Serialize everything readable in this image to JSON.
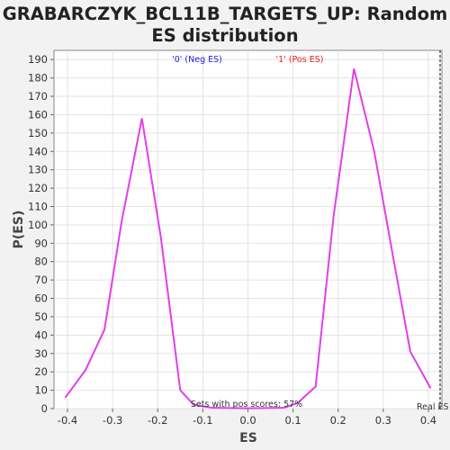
{
  "chart_data": {
    "type": "line",
    "title_lines": [
      "GRABARCZYK_BCL11B_TARGETS_UP: Random",
      "ES distribution"
    ],
    "xlabel": "ES",
    "ylabel": "P(ES)",
    "xlim": [
      -0.43,
      0.43
    ],
    "ylim": [
      0,
      195
    ],
    "x_ticks": [
      -0.4,
      -0.3,
      -0.2,
      -0.1,
      0.0,
      0.1,
      0.2,
      0.3,
      0.4
    ],
    "x_tick_labels": [
      "-0.4",
      "-0.3",
      "-0.2",
      "-0.1",
      "0.0",
      "0.1",
      "0.2",
      "0.3",
      "0.4"
    ],
    "y_ticks": [
      0,
      10,
      20,
      30,
      40,
      50,
      60,
      70,
      80,
      90,
      100,
      110,
      120,
      130,
      140,
      150,
      160,
      170,
      180,
      190
    ],
    "y_tick_labels": [
      "0",
      "10",
      "20",
      "30",
      "40",
      "50",
      "60",
      "70",
      "80",
      "90",
      "100",
      "110",
      "120",
      "130",
      "140",
      "150",
      "160",
      "170",
      "180",
      "190"
    ],
    "grid": true,
    "series": [
      {
        "color": "#e040e8",
        "x": [
          -0.405,
          -0.36,
          -0.318,
          -0.28,
          -0.235,
          -0.193,
          -0.15,
          -0.12,
          -0.08,
          -0.04,
          0.0,
          0.04,
          0.08,
          0.11,
          0.15,
          0.19,
          0.235,
          0.28,
          0.32,
          0.36,
          0.405
        ],
        "y": [
          6,
          21,
          43,
          102,
          158,
          93,
          10,
          2,
          0.5,
          0.3,
          0.2,
          0.3,
          0.5,
          3,
          12,
          105,
          185,
          140,
          85,
          31,
          11
        ]
      }
    ],
    "annotations": {
      "neg_label": "'0' (Neg ES)",
      "neg_color": "#2222dd",
      "pos_label": "'1' (Pos ES)",
      "pos_color": "#dd2222",
      "sets_text": "Sets with pos scores: 57%",
      "real_label": "Real ES"
    }
  }
}
